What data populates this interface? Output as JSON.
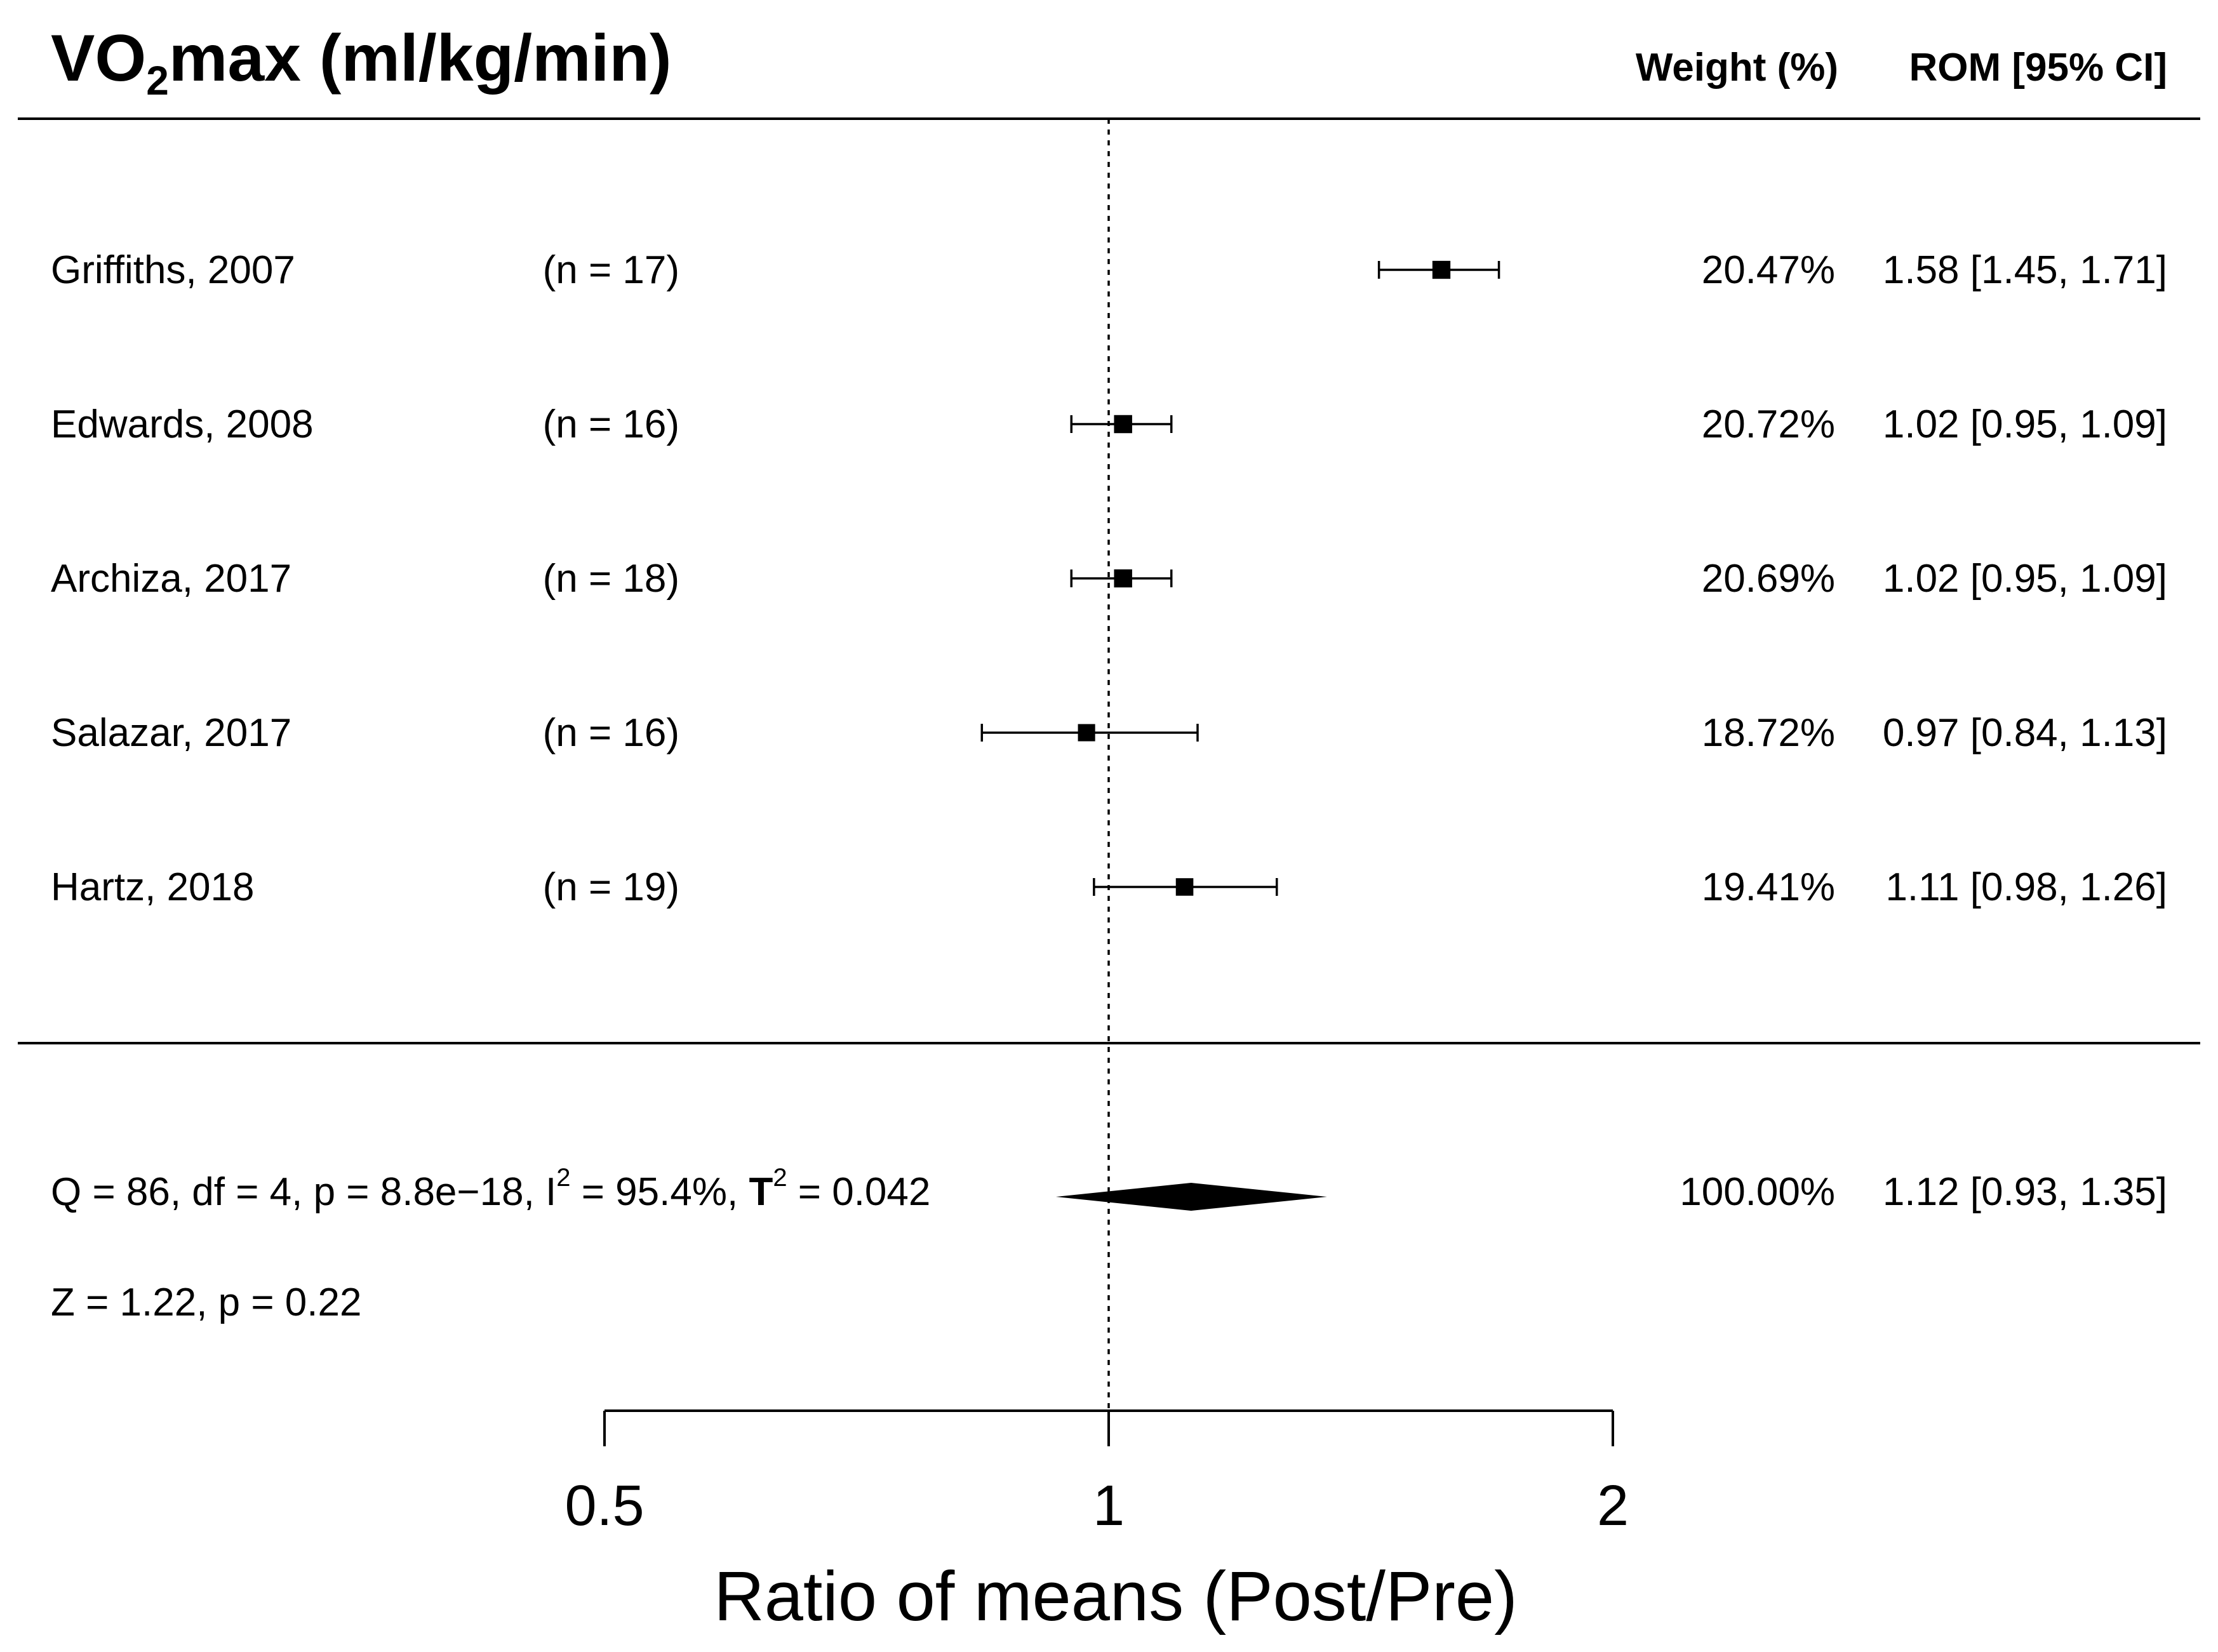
{
  "chart_data": {
    "type": "forest",
    "title": "VO₂max (ml/kg/min)",
    "title_parts": {
      "prefix": "VO",
      "subscript": "2",
      "suffix": "max (ml/kg/min)"
    },
    "headers": {
      "weight": "Weight (%)",
      "rom": "ROM [95% CI]"
    },
    "xlabel": "Ratio of means (Post/Pre)",
    "xscale": "log",
    "xlim": [
      0.5,
      2
    ],
    "xticks": [
      {
        "value": 0.5,
        "label": "0.5"
      },
      {
        "value": 1,
        "label": "1"
      },
      {
        "value": 2,
        "label": "2"
      }
    ],
    "reference_line": 1,
    "studies": [
      {
        "name": "Griffiths, 2007",
        "n_label": "(n = 17)",
        "estimate": 1.58,
        "lower": 1.45,
        "upper": 1.71,
        "weight": 20.47,
        "weight_label": "20.47%",
        "rom_label": "1.58 [1.45, 1.71]"
      },
      {
        "name": "Edwards, 2008",
        "n_label": "(n = 16)",
        "estimate": 1.02,
        "lower": 0.95,
        "upper": 1.09,
        "weight": 20.72,
        "weight_label": "20.72%",
        "rom_label": "1.02 [0.95, 1.09]"
      },
      {
        "name": "Archiza, 2017",
        "n_label": "(n = 18)",
        "estimate": 1.02,
        "lower": 0.95,
        "upper": 1.09,
        "weight": 20.69,
        "weight_label": "20.69%",
        "rom_label": "1.02 [0.95, 1.09]"
      },
      {
        "name": "Salazar, 2017",
        "n_label": "(n = 16)",
        "estimate": 0.97,
        "lower": 0.84,
        "upper": 1.13,
        "weight": 18.72,
        "weight_label": "18.72%",
        "rom_label": "0.97 [0.84, 1.13]"
      },
      {
        "name": "Hartz, 2018",
        "n_label": "(n = 19)",
        "estimate": 1.11,
        "lower": 0.98,
        "upper": 1.26,
        "weight": 19.41,
        "weight_label": "19.41%",
        "rom_label": "1.11 [0.98, 1.26]"
      }
    ],
    "summary": {
      "estimate": 1.12,
      "lower": 0.93,
      "upper": 1.35,
      "weight_label": "100.00%",
      "rom_label": "1.12 [0.93, 1.35]",
      "heterogeneity": {
        "pre": "Q = 86, df = 4, p = 8.8e−18, I",
        "i2_sup": "2",
        "mid": " = 95.4%, ",
        "tau": "Τ",
        "tau_sup": "2",
        "post": " = 0.042"
      },
      "overall_test": "Z = 1.22, p = 0.22"
    }
  }
}
